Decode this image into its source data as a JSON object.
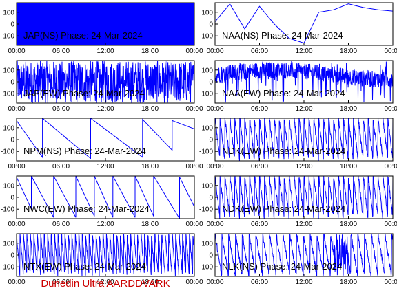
{
  "colors": {
    "trace": "#0000ff",
    "frame": "#000000",
    "footer": "#cc0000",
    "background": "#ffffff"
  },
  "footer": {
    "label": "Dunedin Ultra AARDDVARK"
  },
  "chart_data": [
    {
      "type": "line",
      "title": "JAP(NS) Phase: 24-Mar-2024",
      "xlim": [
        "00:00",
        "24:00"
      ],
      "ylim": [
        -180,
        180
      ],
      "x_ticks": [
        "00:00",
        "06:00",
        "12:00",
        "18:00",
        "00:00"
      ],
      "y_ticks": [
        100,
        0,
        -100
      ],
      "pattern": "saturated",
      "x": [
        "00:00",
        "24:00"
      ],
      "y": [
        180,
        180
      ]
    },
    {
      "type": "line",
      "title": "NAA(NS) Phase: 24-Mar-2024",
      "xlim": [
        "00:00",
        "24:00"
      ],
      "ylim": [
        -180,
        180
      ],
      "x_ticks": [
        "00:00",
        "06:00",
        "12:00",
        "18:00",
        "00:00"
      ],
      "y_ticks": [
        100,
        0,
        -100
      ],
      "pattern": "drift",
      "x": [
        "00:00",
        "02:00",
        "04:00",
        "06:00",
        "08:00",
        "10:00",
        "12:00",
        "14:00",
        "16:00",
        "18:00",
        "20:00",
        "22:00",
        "24:00"
      ],
      "y": [
        20,
        170,
        -40,
        150,
        0,
        -120,
        -160,
        100,
        120,
        170,
        140,
        120,
        110
      ]
    },
    {
      "type": "line",
      "title": "JAP(EW) Phase: 24-Mar-2024",
      "xlim": [
        "00:00",
        "24:00"
      ],
      "ylim": [
        -180,
        180
      ],
      "x_ticks": [
        "00:00",
        "06:00",
        "12:00",
        "18:00",
        "00:00"
      ],
      "y_ticks": [
        100,
        0,
        -100
      ],
      "pattern": "dense-noise",
      "x": [
        "00:00",
        "06:00",
        "12:00",
        "18:00",
        "24:00"
      ],
      "y": [
        0,
        40,
        -20,
        30,
        0
      ]
    },
    {
      "type": "line",
      "title": "NAA(EW) Phase: 24-Mar-2024",
      "xlim": [
        "00:00",
        "24:00"
      ],
      "ylim": [
        -180,
        180
      ],
      "x_ticks": [
        "00:00",
        "06:00",
        "12:00",
        "18:00",
        "00:00"
      ],
      "y_ticks": [
        100,
        0,
        -100
      ],
      "pattern": "band-noise",
      "x": [
        "00:00",
        "06:00",
        "12:00",
        "18:00",
        "24:00"
      ],
      "y": [
        40,
        80,
        100,
        110,
        90
      ]
    },
    {
      "type": "line",
      "title": "NPM(NS) Phase: 24-Mar-2024",
      "xlim": [
        "00:00",
        "24:00"
      ],
      "ylim": [
        -180,
        180
      ],
      "x_ticks": [
        "00:00",
        "06:00",
        "12:00",
        "18:00",
        "00:00"
      ],
      "y_ticks": [
        100,
        0,
        -100
      ],
      "pattern": "slow-sawtooth",
      "x": [
        "00:00",
        "03:30",
        "03:30",
        "10:00",
        "10:00",
        "17:00",
        "17:00",
        "21:00",
        "21:00",
        "24:00"
      ],
      "y": [
        160,
        -150,
        180,
        -160,
        180,
        -150,
        170,
        -90,
        160,
        90
      ]
    },
    {
      "type": "line",
      "title": "NDK(EW) Phase: 24-Mar-2024",
      "xlim": [
        "00:00",
        "24:00"
      ],
      "ylim": [
        -180,
        180
      ],
      "x_ticks": [
        "00:00",
        "06:00",
        "12:00",
        "18:00",
        "00:00"
      ],
      "y_ticks": [
        100,
        0,
        -100
      ],
      "pattern": "fast-sawtooth",
      "x": [
        "00:00",
        "24:00"
      ],
      "y": [
        180,
        -180
      ]
    },
    {
      "type": "line",
      "title": "NWC(EW) Phase: 24-Mar-2024",
      "xlim": [
        "00:00",
        "24:00"
      ],
      "ylim": [
        -180,
        180
      ],
      "x_ticks": [
        "00:00",
        "06:00",
        "12:00",
        "18:00",
        "00:00"
      ],
      "y_ticks": [
        100,
        0,
        -100
      ],
      "pattern": "sawtooth",
      "x": [
        "00:00",
        "02:00",
        "02:00",
        "05:00",
        "05:00",
        "08:00",
        "08:00",
        "10:30",
        "10:30",
        "13:00",
        "13:00",
        "16:00",
        "16:00",
        "18:30",
        "18:30",
        "22:00",
        "22:00",
        "24:00"
      ],
      "y": [
        170,
        -100,
        180,
        -170,
        180,
        -170,
        180,
        -160,
        180,
        -170,
        180,
        -170,
        180,
        -160,
        180,
        -180,
        170,
        -80
      ]
    },
    {
      "type": "line",
      "title": "NDK(EW) Phase: 24-Mar-2024",
      "xlim": [
        "00:00",
        "24:00"
      ],
      "ylim": [
        -180,
        180
      ],
      "x_ticks": [
        "00:00",
        "06:00",
        "12:00",
        "18:00",
        "00:00"
      ],
      "y_ticks": [
        100,
        0,
        -100
      ],
      "pattern": "fast-sawtooth",
      "x": [
        "00:00",
        "24:00"
      ],
      "y": [
        180,
        -180
      ]
    },
    {
      "type": "line",
      "title": "NTX(EW) Phase: 24-Mar-2024",
      "xlim": [
        "00:00",
        "24:00"
      ],
      "ylim": [
        -180,
        180
      ],
      "x_ticks": [
        "00:00",
        "06:00",
        "12:00",
        "18:00",
        "00:00"
      ],
      "y_ticks": [
        100,
        0,
        -100
      ],
      "pattern": "very-fast-sawtooth",
      "x": [
        "00:00",
        "24:00"
      ],
      "y": [
        180,
        -180
      ]
    },
    {
      "type": "line",
      "title": "NLK(NS) Phase: 24-Mar-2024",
      "xlim": [
        "00:00",
        "24:00"
      ],
      "ylim": [
        -180,
        180
      ],
      "x_ticks": [
        "00:00",
        "06:00",
        "12:00",
        "18:00",
        "00:00"
      ],
      "y_ticks": [
        100,
        0,
        -100
      ],
      "pattern": "sawtooth-with-block",
      "x": [
        "00:00",
        "24:00"
      ],
      "y": [
        180,
        -180
      ]
    }
  ]
}
